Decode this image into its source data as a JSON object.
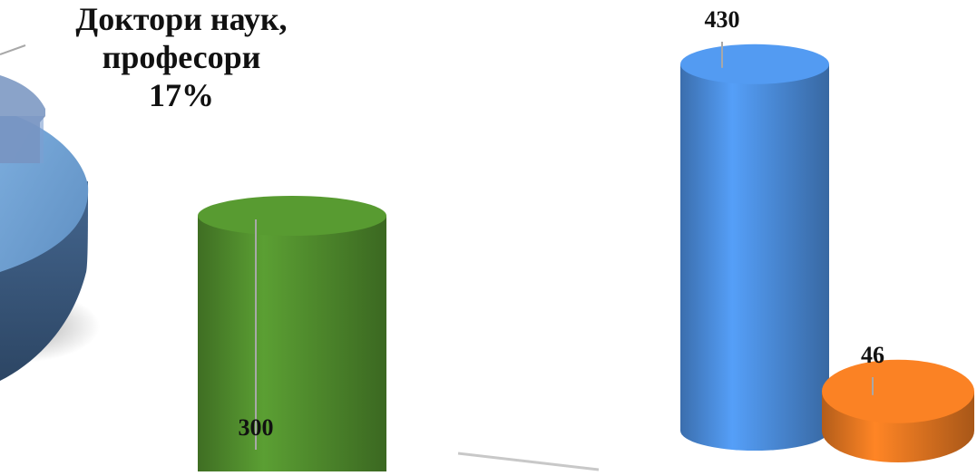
{
  "chart_data": [
    {
      "type": "pie",
      "slice_label": {
        "line1": "Доктори наук,",
        "line2": "професори",
        "percent_text": "17%",
        "value": 17
      },
      "colors": {
        "slice_top": "#8aa3c9",
        "slice_side": "#6e85aa",
        "pie_top": "#6f9fd1",
        "pie_side": "#3b5a82"
      }
    },
    {
      "type": "bar",
      "style": "3d-cylinder",
      "series": [
        {
          "value": 300,
          "color": "#4f8a2c"
        },
        {
          "value": 430,
          "color": "#4a8ad8"
        },
        {
          "value": 46,
          "color": "#e07420"
        }
      ],
      "data_labels": [
        "300",
        "430",
        "46"
      ]
    }
  ]
}
